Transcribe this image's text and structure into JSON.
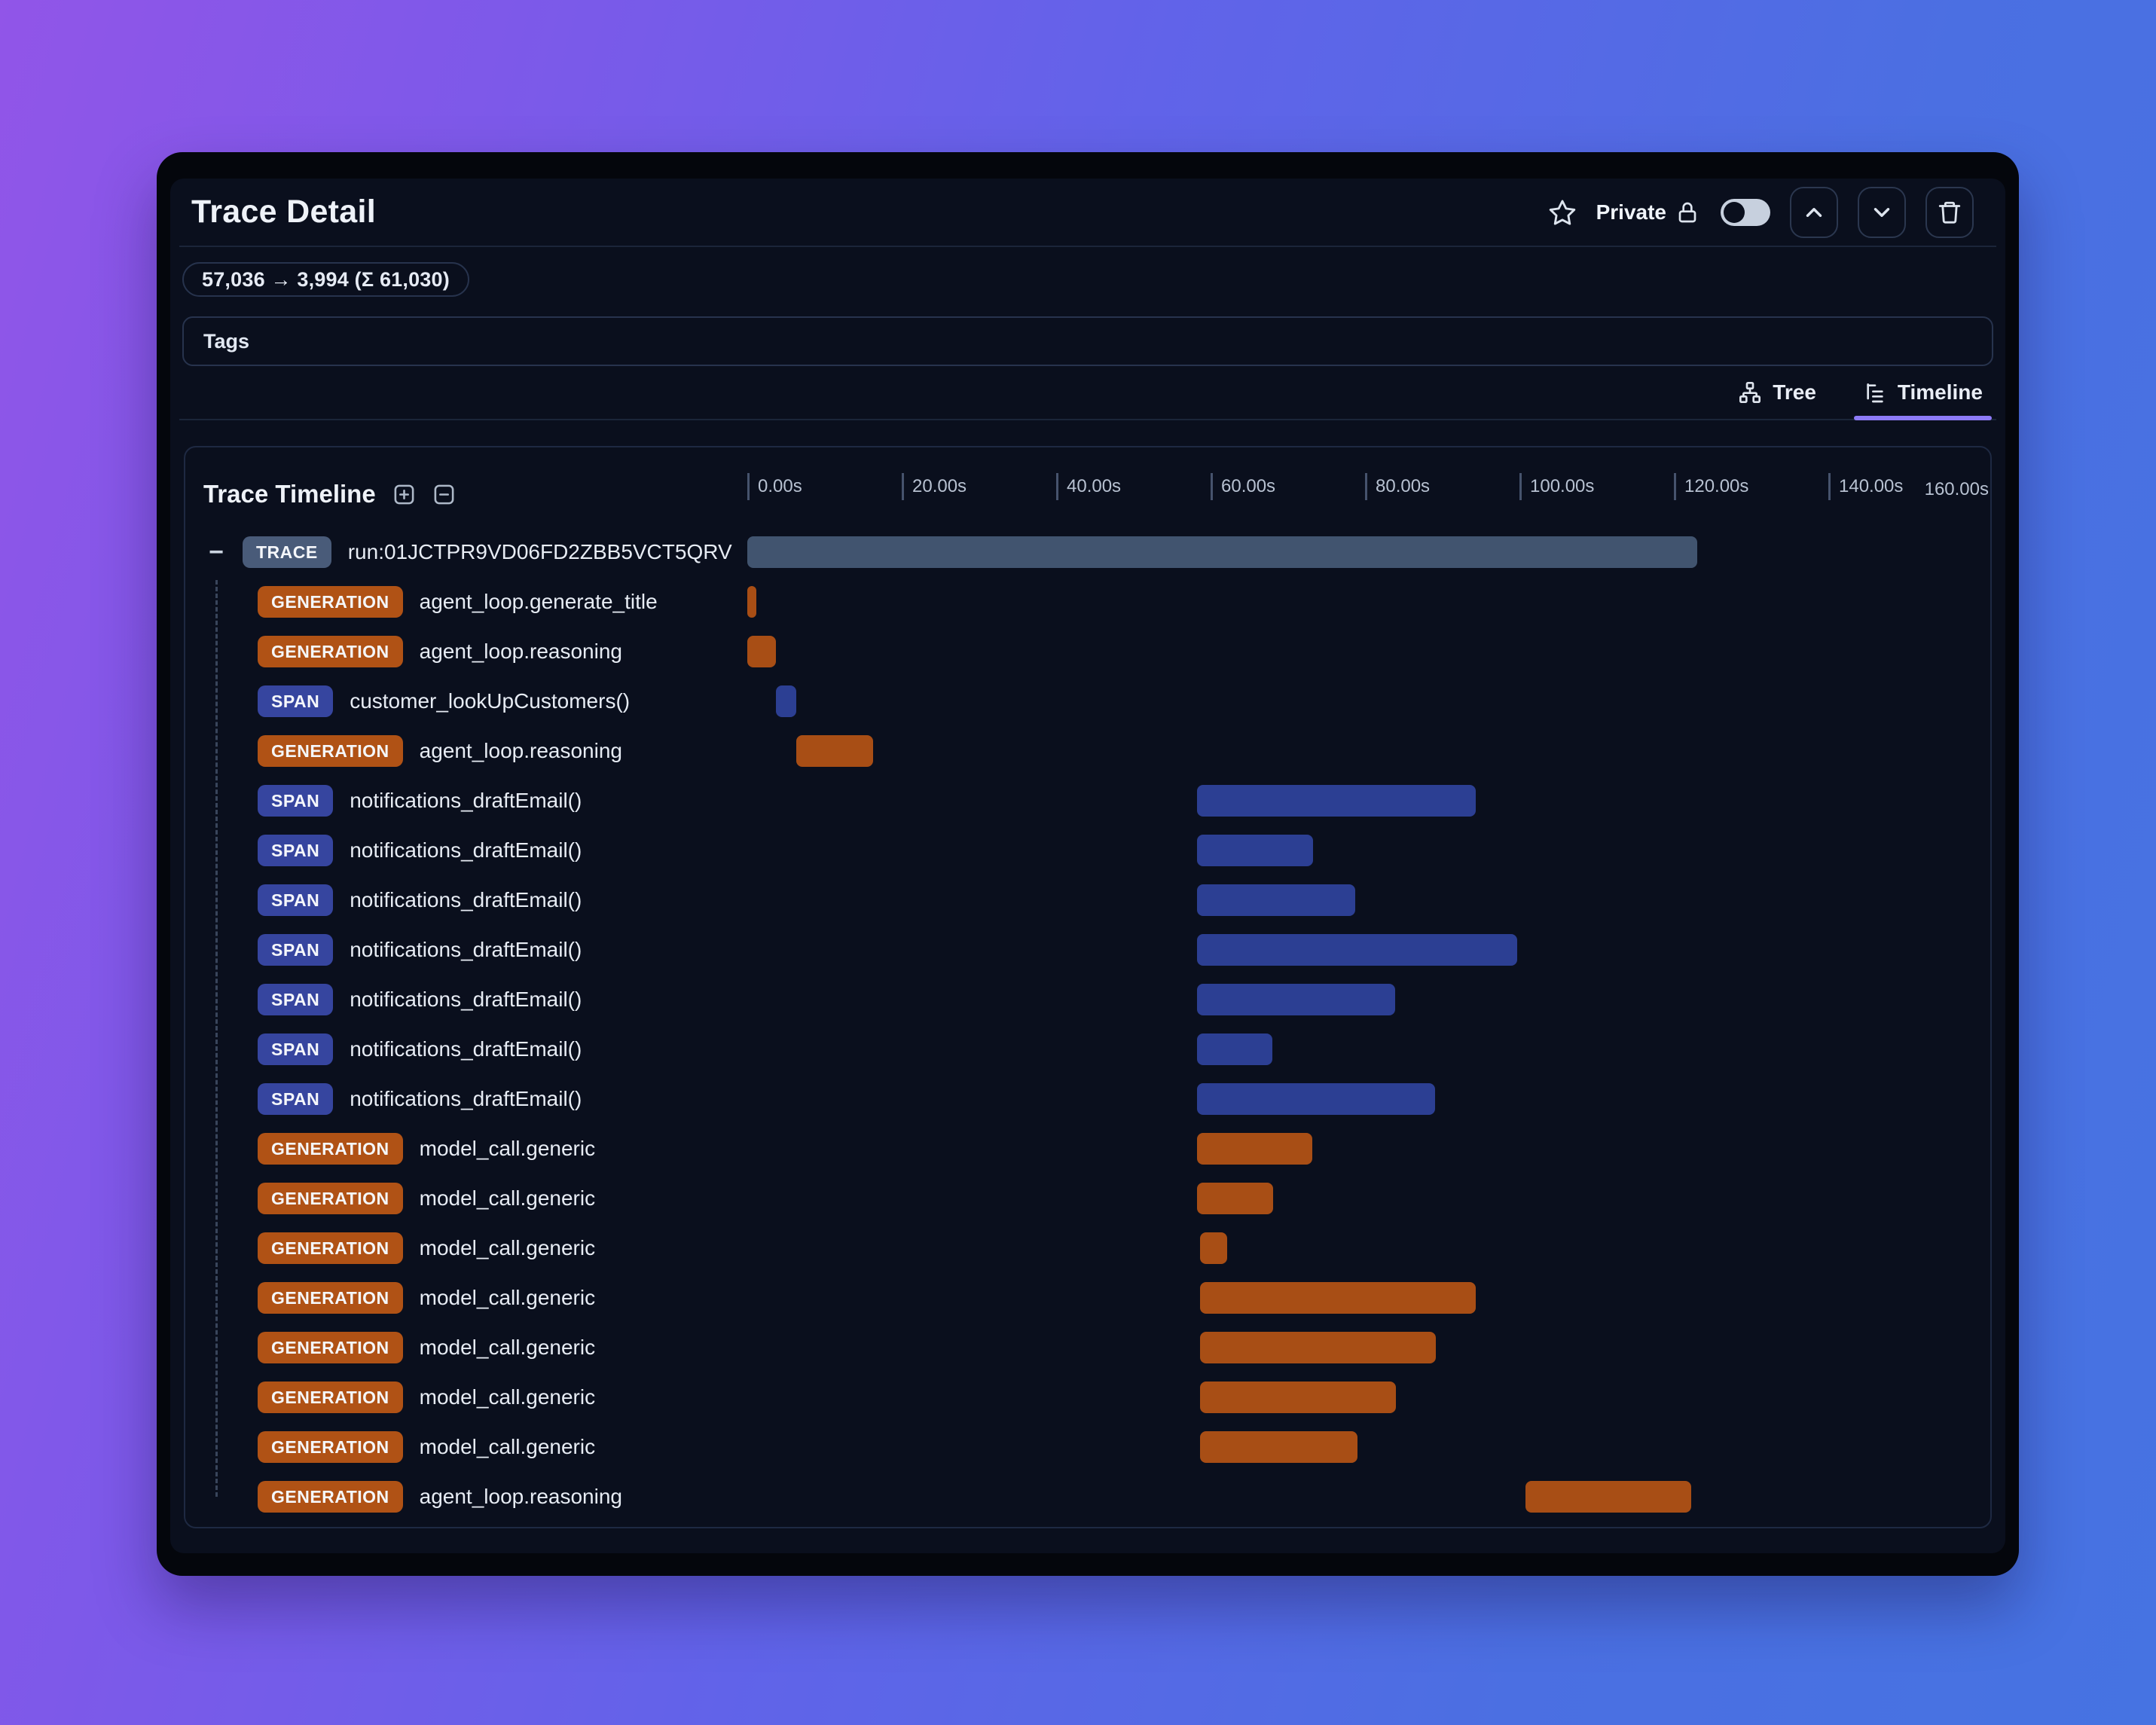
{
  "window": {
    "title": "Trace Detail",
    "controls": {
      "bookmark_icon": "star-icon",
      "privacy_label": "Private",
      "privacy_icon": "lock-icon",
      "privacy_toggle_state": "off",
      "nav_buttons": [
        "chevron-up-icon",
        "chevron-down-icon",
        "trash-icon"
      ]
    },
    "token_usage": "57,036 → 3,994 (Σ 61,030)",
    "tags_label": "Tags",
    "tabs": [
      {
        "label": "Tree",
        "icon": "tree-structure-icon",
        "active": false
      },
      {
        "label": "Timeline",
        "icon": "timeline-list-icon",
        "active": true
      }
    ]
  },
  "timeline": {
    "title": "Trace Timeline",
    "zoom_icons": [
      "plus-square-icon",
      "minus-square-icon"
    ],
    "axis": {
      "max_seconds": 160,
      "tick_labels": [
        "0.00s",
        "20.00s",
        "40.00s",
        "60.00s",
        "80.00s",
        "100.00s",
        "120.00s",
        "140.00s"
      ],
      "end_label": "160.00s"
    },
    "rows": [
      {
        "type": "TRACE",
        "label": "run:01JCTPR9VD06FD2ZBB5VCT5QRV",
        "start_s": 0,
        "end_s": 123.0,
        "collapsible": true
      },
      {
        "type": "GENERATION",
        "label": "agent_loop.generate_title",
        "start_s": 0,
        "end_s": 1.2
      },
      {
        "type": "GENERATION",
        "label": "agent_loop.reasoning",
        "start_s": 0,
        "end_s": 3.7
      },
      {
        "type": "SPAN",
        "label": "customer_lookUpCustomers()",
        "start_s": 3.7,
        "end_s": 6.3
      },
      {
        "type": "GENERATION",
        "label": "agent_loop.reasoning",
        "start_s": 6.3,
        "end_s": 16.3
      },
      {
        "type": "SPAN",
        "label": "notifications_draftEmail()",
        "start_s": 58.2,
        "end_s": 94.3
      },
      {
        "type": "SPAN",
        "label": "notifications_draftEmail()",
        "start_s": 58.2,
        "end_s": 73.3
      },
      {
        "type": "SPAN",
        "label": "notifications_draftEmail()",
        "start_s": 58.2,
        "end_s": 78.7
      },
      {
        "type": "SPAN",
        "label": "notifications_draftEmail()",
        "start_s": 58.2,
        "end_s": 99.7
      },
      {
        "type": "SPAN",
        "label": "notifications_draftEmail()",
        "start_s": 58.2,
        "end_s": 83.9
      },
      {
        "type": "SPAN",
        "label": "notifications_draftEmail()",
        "start_s": 58.2,
        "end_s": 68.0
      },
      {
        "type": "SPAN",
        "label": "notifications_draftEmail()",
        "start_s": 58.2,
        "end_s": 89.1
      },
      {
        "type": "GENERATION",
        "label": "model_call.generic",
        "start_s": 58.2,
        "end_s": 73.2
      },
      {
        "type": "GENERATION",
        "label": "model_call.generic",
        "start_s": 58.2,
        "end_s": 68.1
      },
      {
        "type": "GENERATION",
        "label": "model_call.generic",
        "start_s": 58.6,
        "end_s": 62.1
      },
      {
        "type": "GENERATION",
        "label": "model_call.generic",
        "start_s": 58.6,
        "end_s": 94.3
      },
      {
        "type": "GENERATION",
        "label": "model_call.generic",
        "start_s": 58.6,
        "end_s": 89.2
      },
      {
        "type": "GENERATION",
        "label": "model_call.generic",
        "start_s": 58.6,
        "end_s": 84.0
      },
      {
        "type": "GENERATION",
        "label": "model_call.generic",
        "start_s": 58.6,
        "end_s": 79.0
      },
      {
        "type": "GENERATION",
        "label": "agent_loop.reasoning",
        "start_s": 100.8,
        "end_s": 122.2
      }
    ]
  },
  "colors": {
    "accent_tab_underline": "#8d7bf7",
    "badge_trace": "#495b79",
    "badge_generation": "#b05215",
    "badge_span": "#36459f",
    "bar_trace": "#41546f",
    "bar_generation": "#a84e15",
    "bar_span": "#2c3f93",
    "background_gradient": [
      "#9155e8",
      "#4a70e2"
    ]
  }
}
